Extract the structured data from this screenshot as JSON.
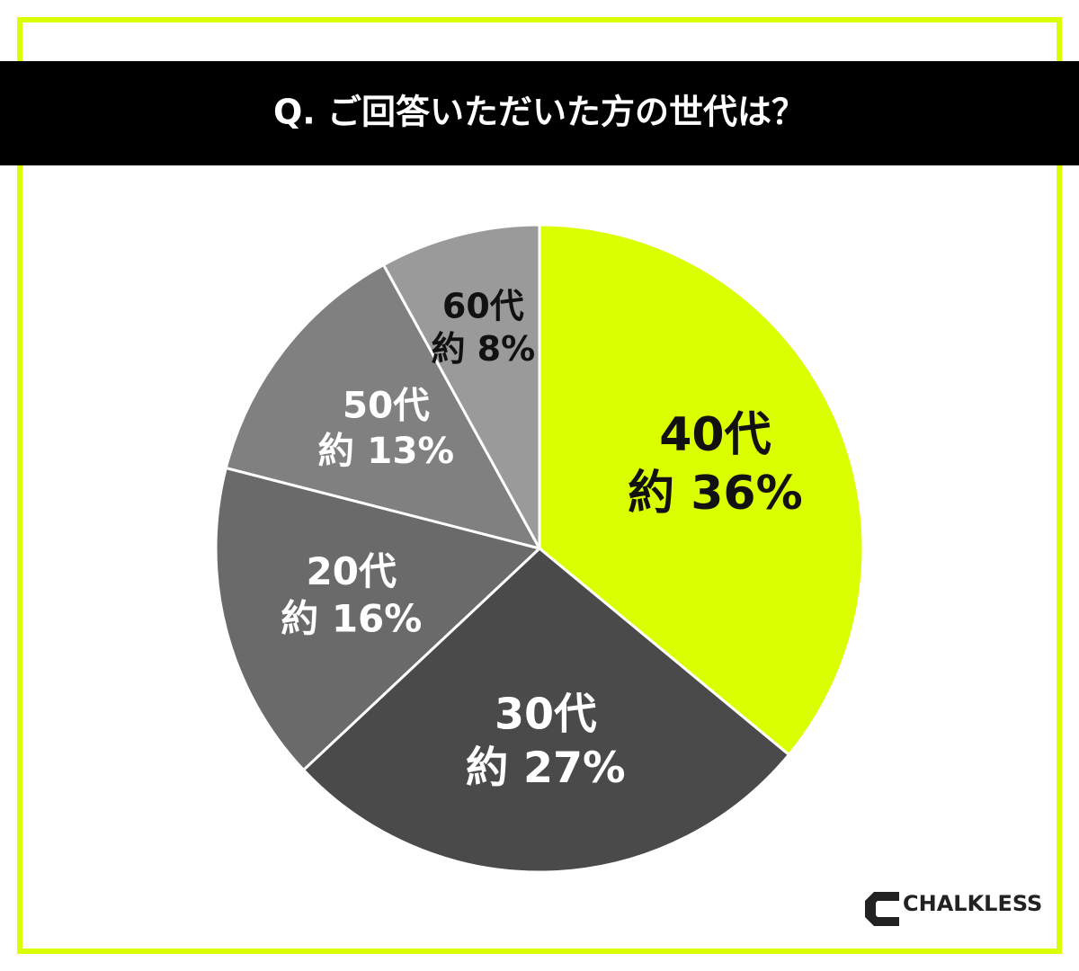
{
  "chart_data": {
    "type": "pie",
    "title": "Q. ご回答いただいた方の世代は？",
    "categories": [
      "40代",
      "30代",
      "20代",
      "50代",
      "60代"
    ],
    "values": [
      36,
      27,
      16,
      13,
      8
    ],
    "value_labels": [
      "約 36%",
      "約 27%",
      "約 16%",
      "約 13%",
      "約 8%"
    ],
    "colors": [
      "#d9ff00",
      "#4a4a4a",
      "#6a6a6a",
      "#808080",
      "#9a9a9a"
    ]
  },
  "brand": "CHALKLESS"
}
